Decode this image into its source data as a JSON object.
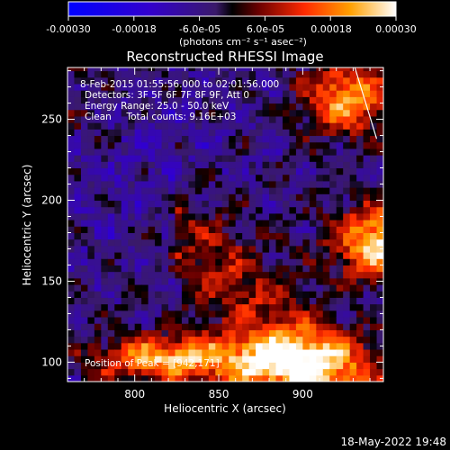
{
  "colorbar": {
    "tick_labels": [
      "-0.00030",
      "-0.00018",
      "-6.0e-05",
      "6.0e-05",
      "0.00018",
      "0.00030"
    ],
    "min": -0.0003,
    "max": 0.0003,
    "unit_label": "(photons cm⁻² s⁻¹ asec⁻²)"
  },
  "chart_data": {
    "type": "heatmap",
    "title": "Reconstructed RHESSI Image",
    "xlabel": "Heliocentric X (arcsec)",
    "ylabel": "Heliocentric Y (arcsec)",
    "xlim": [
      760,
      948
    ],
    "ylim": [
      88,
      282
    ],
    "xticks": [
      800,
      850,
      900
    ],
    "yticks": [
      100,
      150,
      200,
      250
    ],
    "grid": false,
    "annotations": [
      "8-Feb-2015 01:55:56.000 to 02:01:56.000",
      "Detectors: 3F 5F 6F 7F 8F 9F, Att 0",
      "Energy Range: 25.0 - 50.0 keV",
      "Clean     Total counts: 9.16E+03"
    ],
    "peak_label": "Position of Peak = [942,171]",
    "peak": [
      942,
      171
    ],
    "limb_line": [
      [
        931,
        282
      ],
      [
        944,
        238
      ]
    ]
  },
  "footer": {
    "date": "18-May-2022 19:48"
  },
  "colors": {
    "background": "#000000",
    "text": "#ffffff"
  }
}
